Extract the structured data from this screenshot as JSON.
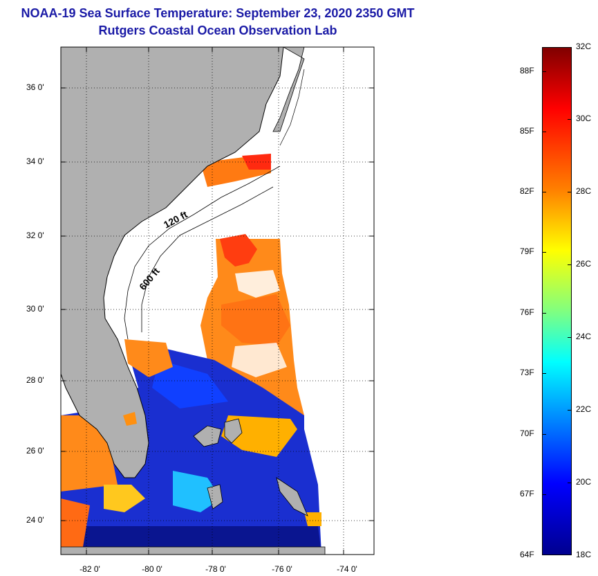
{
  "title_line1": "NOAA-19 Sea Surface Temperature:  September 23, 2020 2350 GMT",
  "title_line2": "Rutgers Coastal Ocean Observation Lab",
  "lat_labels": [
    "36 0'",
    "34 0'",
    "32 0'",
    "30 0'",
    "28 0'",
    "26 0'",
    "24 0'"
  ],
  "lon_labels": [
    "-82 0'",
    "-80 0'",
    "-78 0'",
    "-76 0'",
    "-74 0'"
  ],
  "isobath_labels": [
    "120 ft",
    "600 ft"
  ],
  "colorbar": {
    "fahrenheit_labels": [
      "88F",
      "85F",
      "82F",
      "79F",
      "76F",
      "73F",
      "70F",
      "67F",
      "64F"
    ],
    "celsius_labels": [
      "32C",
      "30C",
      "28C",
      "26C",
      "24C",
      "22C",
      "20C",
      "18C"
    ],
    "range_c": [
      18,
      32
    ],
    "colormap": "jet"
  },
  "colors": {
    "land": "#b0b0b0",
    "no_data": "#ffffff",
    "title": "#1a1aa6"
  }
}
